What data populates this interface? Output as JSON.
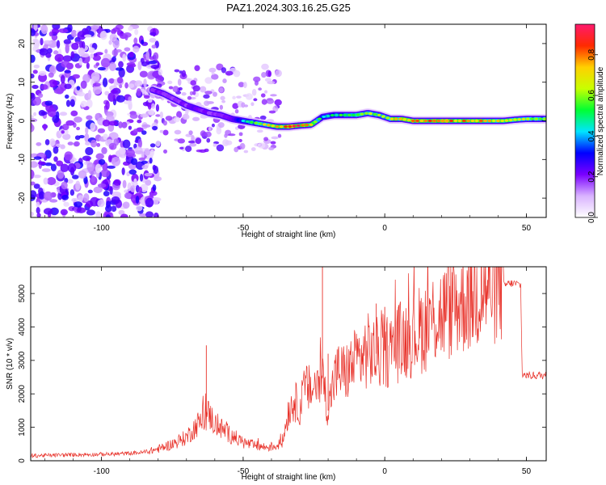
{
  "title": "PAZ1.2024.303.16.25.G25",
  "chart_data": [
    {
      "type": "heatmap",
      "title": "PAZ1.2024.303.16.25.G25",
      "xlabel": "Height of straight line (km)",
      "ylabel": "Frequency (Hz)",
      "xlim": [
        -125,
        57
      ],
      "ylim": [
        -25,
        25
      ],
      "xticks": [
        -100,
        -50,
        0,
        50
      ],
      "yticks": [
        -20,
        -10,
        0,
        10,
        20
      ],
      "grid": false,
      "colorbar": {
        "label": "Normalized spectral amplitude",
        "range": [
          0,
          0.95
        ],
        "ticks": [
          0.0,
          0.2,
          0.4,
          0.6,
          0.8
        ],
        "colors": [
          "#ffffff",
          "#d9b3ff",
          "#7a00ff",
          "#0000ff",
          "#00e5ff",
          "#00ff33",
          "#c8ff00",
          "#ffd000",
          "#ff2a00",
          "#ff1a6e"
        ]
      },
      "ridge": {
        "x": [
          -82,
          -78,
          -74,
          -70,
          -66,
          -62,
          -58,
          -54,
          -50,
          -46,
          -42,
          -38,
          -34,
          -30,
          -26,
          -22,
          -18,
          -14,
          -10,
          -6,
          -2,
          2,
          6,
          10,
          14,
          18,
          22,
          26,
          30,
          34,
          38,
          42,
          46,
          50,
          54,
          57
        ],
        "freq": [
          8,
          7,
          5.5,
          4,
          3,
          2,
          1.5,
          0.5,
          0,
          -0.5,
          -1,
          -1.5,
          -1.5,
          -1.2,
          -1,
          1,
          1.5,
          1.5,
          1.5,
          2,
          1.5,
          0.5,
          0.5,
          0,
          0,
          0,
          0,
          0,
          0,
          0,
          0,
          0,
          0.3,
          0.5,
          0.5,
          0.5
        ],
        "amplitude": [
          0.3,
          0.3,
          0.3,
          0.3,
          0.35,
          0.3,
          0.3,
          0.35,
          0.5,
          0.6,
          0.7,
          0.85,
          0.85,
          0.9,
          0.8,
          0.5,
          0.5,
          0.55,
          0.6,
          0.7,
          0.6,
          0.7,
          0.8,
          0.85,
          0.85,
          0.85,
          0.85,
          0.8,
          0.8,
          0.8,
          0.75,
          0.75,
          0.7,
          0.65,
          0.6,
          0.6
        ]
      }
    },
    {
      "type": "line",
      "xlabel": "Height of straight line (km)",
      "ylabel": "SNR (10 * v/v)",
      "xlim": [
        -125,
        57
      ],
      "ylim": [
        0,
        5800
      ],
      "xticks": [
        -100,
        -50,
        0,
        50
      ],
      "yticks": [
        0,
        1000,
        2000,
        3000,
        4000,
        5000
      ],
      "grid": false,
      "line_color": "#e8322a",
      "series": [
        {
          "x": [
            -125,
            -110,
            -95,
            -85,
            -80,
            -75,
            -70,
            -66,
            -62,
            -60,
            -55,
            -52,
            -50,
            -46,
            -42,
            -38,
            -36,
            -34,
            -32,
            -30,
            -28,
            -26,
            -24,
            -22,
            -20,
            -18,
            -16,
            -14,
            -12,
            -10,
            -8,
            -6,
            -4,
            -2,
            0,
            2,
            4,
            6,
            8,
            10,
            12,
            14,
            16,
            18,
            20,
            22,
            24,
            26,
            28,
            30,
            32,
            34,
            36,
            38,
            40,
            42,
            44,
            46,
            48,
            48.5,
            50,
            52,
            55,
            57
          ],
          "y": [
            150,
            180,
            200,
            250,
            350,
            500,
            700,
            1100,
            1400,
            1100,
            800,
            650,
            550,
            450,
            400,
            450,
            600,
            1500,
            1800,
            1600,
            2200,
            2100,
            2300,
            2500,
            1500,
            2400,
            2700,
            2600,
            2800,
            3000,
            3100,
            3300,
            3200,
            3200,
            3300,
            3300,
            3500,
            3600,
            3700,
            3800,
            3900,
            4000,
            4200,
            4300,
            4400,
            4500,
            4600,
            4700,
            4800,
            4900,
            5000,
            5100,
            5200,
            5200,
            5250,
            5250,
            5300,
            5300,
            5250,
            2600,
            2550,
            2550,
            2550,
            2550
          ]
        }
      ],
      "peaks": {
        "x": [
          -63,
          -22,
          -3,
          -20,
          0
        ],
        "y": [
          3450,
          5800,
          4700,
          3200,
          4600
        ]
      }
    }
  ]
}
